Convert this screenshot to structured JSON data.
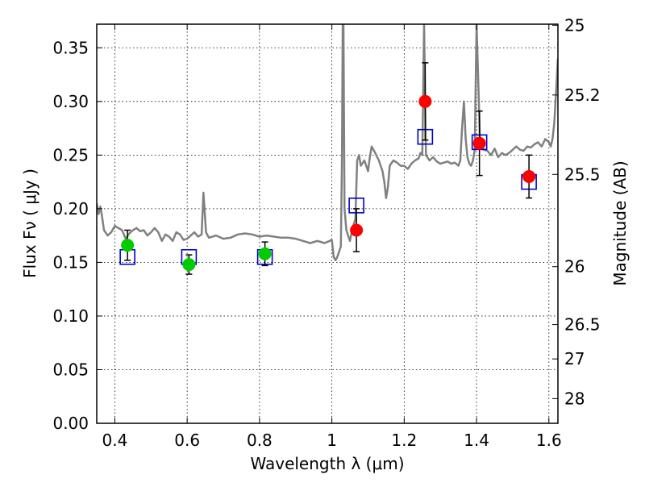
{
  "chart_data": {
    "type": "scatter",
    "xlabel": "Wavelength  λ (μm)",
    "ylabel": "Flux  Fν  ( μJy )",
    "ylabel_right": "Magnitude (AB)",
    "xlim": [
      0.35,
      1.625
    ],
    "ylim": [
      0.0,
      0.372
    ],
    "grid": true,
    "x_ticks": [
      0.4,
      0.6,
      0.8,
      1.0,
      1.2,
      1.4,
      1.6
    ],
    "x_tick_labels": [
      "0.4",
      "0.6",
      "0.8",
      "1",
      "1.2",
      "1.4",
      "1.6"
    ],
    "y_ticks": [
      0.0,
      0.05,
      0.1,
      0.15,
      0.2,
      0.25,
      0.3,
      0.35
    ],
    "y_tick_labels": [
      "0.00",
      "0.05",
      "0.10",
      "0.15",
      "0.20",
      "0.25",
      "0.30",
      "0.35"
    ],
    "right_ticks": [
      {
        "label": "25",
        "flux": 0.371
      },
      {
        "label": "25.2",
        "flux": 0.306
      },
      {
        "label": "25.5",
        "flux": 0.232
      },
      {
        "label": "26",
        "flux": 0.146
      },
      {
        "label": "26.5",
        "flux": 0.092
      },
      {
        "label": "27",
        "flux": 0.06
      },
      {
        "label": "28",
        "flux": 0.023
      }
    ],
    "series": [
      {
        "marker": "green-circle",
        "color": "#00cc00",
        "x": [
          0.435,
          0.605,
          0.815
        ],
        "y": [
          0.166,
          0.148,
          0.158
        ],
        "yerr": [
          0.014,
          0.009,
          0.011
        ]
      },
      {
        "marker": "red-circle",
        "color": "#ff0000",
        "x": [
          1.068,
          1.258,
          1.408,
          1.545
        ],
        "y": [
          0.18,
          0.3,
          0.261,
          0.23
        ],
        "yerr": [
          0.02,
          0.036,
          0.03,
          0.02
        ]
      },
      {
        "marker": "blue-square",
        "color": "#0000cc",
        "x": [
          0.435,
          0.605,
          0.815,
          1.068,
          1.258,
          1.408,
          1.545
        ],
        "y": [
          0.155,
          0.155,
          0.155,
          0.203,
          0.267,
          0.262,
          0.225
        ]
      },
      {
        "marker": "line",
        "color": "#808080",
        "x": [
          0.35,
          0.355,
          0.36,
          0.365,
          0.37,
          0.38,
          0.39,
          0.4,
          0.41,
          0.42,
          0.43,
          0.44,
          0.45,
          0.46,
          0.47,
          0.48,
          0.49,
          0.5,
          0.51,
          0.52,
          0.53,
          0.54,
          0.55,
          0.56,
          0.57,
          0.58,
          0.59,
          0.6,
          0.61,
          0.62,
          0.63,
          0.64,
          0.645,
          0.648,
          0.652,
          0.66,
          0.68,
          0.7,
          0.72,
          0.74,
          0.76,
          0.78,
          0.8,
          0.82,
          0.84,
          0.86,
          0.88,
          0.9,
          0.92,
          0.94,
          0.96,
          0.98,
          1.0,
          1.005,
          1.01,
          1.015,
          1.02,
          1.025,
          1.028,
          1.03,
          1.032,
          1.035,
          1.04,
          1.045,
          1.05,
          1.055,
          1.06,
          1.065,
          1.07,
          1.075,
          1.08,
          1.09,
          1.1,
          1.105,
          1.11,
          1.115,
          1.12,
          1.13,
          1.14,
          1.145,
          1.15,
          1.155,
          1.16,
          1.17,
          1.18,
          1.19,
          1.2,
          1.21,
          1.22,
          1.23,
          1.24,
          1.245,
          1.25,
          1.255,
          1.26,
          1.27,
          1.28,
          1.29,
          1.3,
          1.31,
          1.32,
          1.33,
          1.34,
          1.35,
          1.355,
          1.36,
          1.365,
          1.37,
          1.375,
          1.38,
          1.385,
          1.39,
          1.395,
          1.4,
          1.41,
          1.42,
          1.43,
          1.44,
          1.45,
          1.46,
          1.47,
          1.48,
          1.49,
          1.5,
          1.51,
          1.52,
          1.53,
          1.54,
          1.55,
          1.56,
          1.57,
          1.58,
          1.59,
          1.6,
          1.605,
          1.61,
          1.615,
          1.62,
          1.625
        ],
        "y": [
          0.205,
          0.195,
          0.202,
          0.192,
          0.18,
          0.175,
          0.178,
          0.184,
          0.182,
          0.18,
          0.172,
          0.177,
          0.18,
          0.182,
          0.179,
          0.18,
          0.175,
          0.178,
          0.182,
          0.178,
          0.17,
          0.176,
          0.174,
          0.17,
          0.178,
          0.176,
          0.171,
          0.172,
          0.175,
          0.178,
          0.174,
          0.176,
          0.215,
          0.2,
          0.178,
          0.173,
          0.175,
          0.172,
          0.173,
          0.176,
          0.177,
          0.176,
          0.174,
          0.175,
          0.174,
          0.173,
          0.173,
          0.172,
          0.17,
          0.168,
          0.17,
          0.168,
          0.171,
          0.155,
          0.152,
          0.155,
          0.16,
          0.165,
          0.25,
          0.372,
          0.372,
          0.2,
          0.18,
          0.175,
          0.17,
          0.178,
          0.185,
          0.19,
          0.245,
          0.25,
          0.24,
          0.245,
          0.235,
          0.248,
          0.258,
          0.255,
          0.252,
          0.245,
          0.235,
          0.225,
          0.21,
          0.22,
          0.24,
          0.245,
          0.243,
          0.24,
          0.24,
          0.237,
          0.242,
          0.245,
          0.247,
          0.252,
          0.25,
          0.372,
          0.25,
          0.245,
          0.248,
          0.244,
          0.242,
          0.243,
          0.244,
          0.242,
          0.243,
          0.24,
          0.245,
          0.275,
          0.3,
          0.265,
          0.248,
          0.242,
          0.24,
          0.245,
          0.255,
          0.372,
          0.26,
          0.255,
          0.254,
          0.25,
          0.256,
          0.248,
          0.252,
          0.25,
          0.252,
          0.255,
          0.258,
          0.255,
          0.254,
          0.258,
          0.257,
          0.26,
          0.262,
          0.258,
          0.265,
          0.262,
          0.258,
          0.265,
          0.28,
          0.31,
          0.34
        ]
      }
    ]
  }
}
